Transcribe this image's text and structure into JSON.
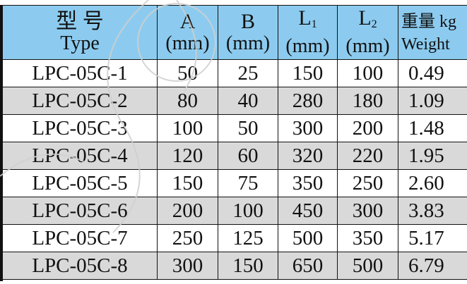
{
  "headers": [
    {
      "zh": "型 号",
      "en": "Type"
    },
    {
      "zh": "A",
      "en": "(mm)"
    },
    {
      "zh": "B",
      "en": "(mm)"
    },
    {
      "zh": "L",
      "sub": "1",
      "en": "(mm)"
    },
    {
      "zh": "L",
      "sub": "2",
      "en": "(mm)"
    },
    {
      "zh": "重量 kg",
      "en": "Weight"
    }
  ],
  "rows": [
    [
      "LPC-05C-1",
      "50",
      "25",
      "150",
      "100",
      "0.49"
    ],
    [
      "LPC-05C-2",
      "80",
      "40",
      "280",
      "180",
      "1.09"
    ],
    [
      "LPC-05C-3",
      "100",
      "50",
      "300",
      "200",
      "1.48"
    ],
    [
      "LPC-05C-4",
      "120",
      "60",
      "320",
      "220",
      "1.95"
    ],
    [
      "LPC-05C-5",
      "150",
      "75",
      "350",
      "250",
      "2.60"
    ],
    [
      "LPC-05C-6",
      "200",
      "100",
      "450",
      "300",
      "3.83"
    ],
    [
      "LPC-05C-7",
      "250",
      "125",
      "500",
      "350",
      "5.17"
    ],
    [
      "LPC-05C-8",
      "300",
      "150",
      "650",
      "500",
      "6.79"
    ]
  ],
  "colors": {
    "header_bg": "#8ccbef",
    "alt_row_bg": "#d9d9d9"
  }
}
